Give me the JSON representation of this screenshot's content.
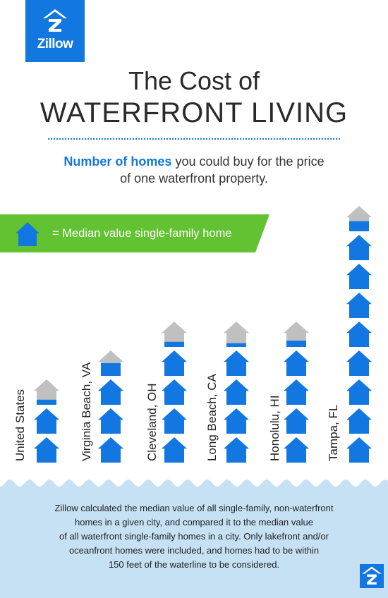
{
  "brand": {
    "name": "Zillow",
    "color": "#1277e1",
    "icon": "zillow-logo-icon"
  },
  "title": {
    "line1": "The Cost of",
    "line2": "WATERFRONT LIVING"
  },
  "subtitle": {
    "highlight": "Number of homes",
    "rest_line1": " you could buy for the price",
    "line2": "of one waterfront property."
  },
  "legend": {
    "icon": "house-icon",
    "text": "=  Median value single-family home",
    "bar_color": "#62c231"
  },
  "colors": {
    "house_filled": "#1277e1",
    "house_empty": "#c0c0c0",
    "water": "#c6e1f3"
  },
  "chart_data": {
    "type": "pictograph",
    "categories": [
      "United States",
      "Virginia Beach, VA",
      "Cleveland, OH",
      "Long Beach, CA",
      "Honolulu, HI",
      "Tampa, FL"
    ],
    "values": [
      2.2,
      3.5,
      4.2,
      4.15,
      4.25,
      8.4
    ],
    "unit": "Median value single-family home"
  },
  "footnote": {
    "lines": [
      "Zillow calculated the median value of all single-family, non-waterfront",
      "homes in a given city, and compared it to the median value",
      "of all waterfront single-family homes in a city. Only lakefront and/or",
      "oceanfront homes were included, and homes had to be within",
      "150 feet of the waterline to be considered."
    ]
  }
}
